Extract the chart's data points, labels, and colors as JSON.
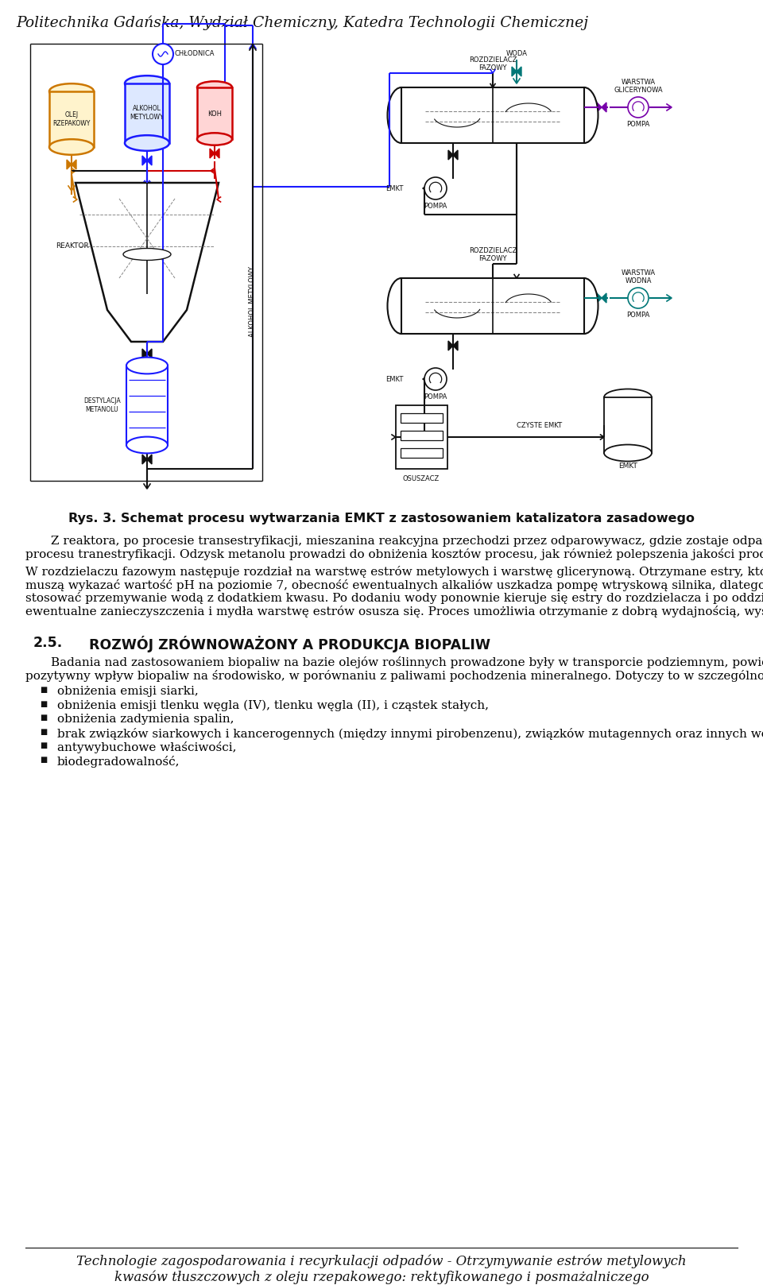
{
  "header_text": "Politechnika Gdańska, Wydział Chemiczny, Katedra Technologii Chemicznej",
  "figure_caption": "Rys. 3. Schemat procesu wytwarzania EMKT z zastosowaniem katalizatora zasadowego",
  "footer_text_line1": "Technologie zagospodarowania i recyrkulacji odpadów - Otrzymywanie estrów metylowych",
  "footer_text_line2": "kwasów tłuszczowych z oleju rzepakowego: rektyfikowanego i posmażalniczego",
  "para1": "Z reaktora, po procesie transestryfikacji, mieszanina reakcyjna przechodzi przez odparowywacz, gdzie zostaje odparowany metanol i zawrócony ponownie do procesu tranestryfikacji. Odzysk metanolu prowadzi do obniżenia kosztów procesu, jak również polepszenia jakości produktu.",
  "para2": "W rozdzielaczu fazowym następuje rozdział na warstwę estrów metylowych i warstwę glicerynową. Otrzymane estry, które mają mieć zastosowanie jako paliwo muszą wykazać wartość pH na poziomie 7, obecność ewentualnych alkaliów uszkadza pompę wtryskową silnika, dlatego kierowane są do przemycia wodą. Można stosować przemywanie wodą z dodatkiem kwasu. Po dodaniu wody ponownie kieruje się estry do rozdzielacza i po oddzieleniu warstwy wodnej, która zawiera ewentualne zanieczyszczenia i mydła warstwę estrów osusza się. Proces umożliwia otrzymanie z dobrą wydajnością, wysokiej jakości biopaliwa.",
  "section_num": "2.5.",
  "section_title": "ROZWÓJ ZRÓWNOWAŻONY A PRODUKCJA BIOPALIW",
  "para3": "Badania nad zastosowaniem biopaliw na bazie olejów roślinnych prowadzone były w transporcie podziemnym, powietrznym i naziemnym. Wyniki potwierdzają pozytywny wpływ biopaliw na środowisko, w porównaniu z paliwami pochodzenia mineralnego. Dotyczy to w szczególności:",
  "bullets": [
    "obniżenia emisji siarki,",
    "obniżenia emisji tlenku węgla (IV), tlenku węgla (II), i cząstek stałych,",
    "obniżenia zadymienia spalin,",
    "brak związków siarkowych i kancerogennych (między innymi pirobenzenu), związków mutagennych oraz innych węglowodorów,",
    "antywybuchowe właściwości,",
    "biodegradowalność,"
  ],
  "bg_color": "#ffffff",
  "text_color": "#000000",
  "blue_color": "#1a1aff",
  "orange_color": "#cc7700",
  "red_color": "#cc0000",
  "green_color": "#007777",
  "purple_color": "#7700aa",
  "black_color": "#111111",
  "gray_color": "#888888"
}
